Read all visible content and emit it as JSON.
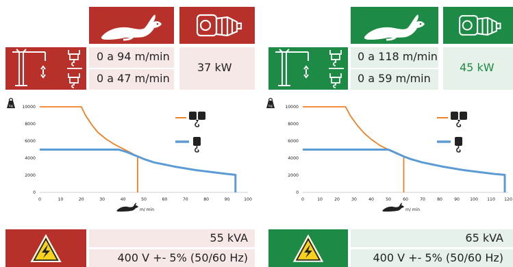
{
  "colors": {
    "red": "#b73029",
    "green": "#1d8a45",
    "pink_panel": "#f6e8e7",
    "mint_panel": "#e6f1ea",
    "orange_curve": "#f07f22",
    "blue_curve": "#5b9bd5"
  },
  "left": {
    "speed_high": "0 a 94 m/min",
    "speed_low": "0 a 47 m/min",
    "power": "37 kW",
    "apparent_power": "55 kVA",
    "voltage": "400 V +- 5% (50/60 Hz)"
  },
  "right": {
    "speed_high": "0 a 118 m/min",
    "speed_low": "0 a 59 m/min",
    "power": "45 kW",
    "apparent_power": "65 kVA",
    "voltage": "400 V +- 5% (50/60 Hz)"
  },
  "icons": [
    "rabbit-icon",
    "gear-motor-icon",
    "tower-crane-icon",
    "hook-block-icon",
    "weight-kg-icon",
    "double-hook-icon",
    "single-hook-icon",
    "high-voltage-warning-icon"
  ],
  "chart_data": [
    {
      "type": "line",
      "xlabel": "m/ min",
      "ylabel": "kg",
      "xlim": [
        0,
        100
      ],
      "ylim": [
        0,
        10000
      ],
      "x_ticks": [
        "0",
        "10",
        "20",
        "30",
        "40",
        "50",
        "60",
        "70",
        "80",
        "90",
        "100"
      ],
      "y_ticks": [
        "0",
        "2000",
        "4000",
        "6000",
        "8000",
        "10000"
      ],
      "grid": false,
      "series": [
        {
          "color": "#f07f22",
          "x": [
            0,
            20,
            22,
            25,
            28,
            32,
            36,
            40,
            44,
            47,
            47
          ],
          "y": [
            10000,
            10000,
            9000,
            7900,
            7000,
            6200,
            5600,
            5100,
            4600,
            4200,
            0
          ]
        },
        {
          "color": "#5b9bd5",
          "x": [
            0,
            38,
            42,
            47,
            50,
            55,
            60,
            65,
            70,
            75,
            80,
            85,
            90,
            94,
            94
          ],
          "y": [
            5000,
            5000,
            4700,
            4200,
            3900,
            3500,
            3250,
            3000,
            2800,
            2600,
            2450,
            2300,
            2150,
            2050,
            0
          ]
        }
      ]
    },
    {
      "type": "line",
      "xlabel": "m/ min",
      "ylabel": "kg",
      "xlim": [
        0,
        120
      ],
      "ylim": [
        0,
        10000
      ],
      "x_ticks": [
        "0",
        "10",
        "20",
        "30",
        "40",
        "50",
        "60",
        "70",
        "80",
        "90",
        "100",
        "110",
        "120"
      ],
      "y_ticks": [
        "0",
        "2000",
        "4000",
        "6000",
        "8000",
        "10000"
      ],
      "grid": false,
      "series": [
        {
          "color": "#f07f22",
          "x": [
            0,
            25,
            28,
            32,
            36,
            40,
            45,
            50,
            55,
            59,
            59
          ],
          "y": [
            10000,
            10000,
            8900,
            7800,
            6900,
            6200,
            5500,
            5000,
            4500,
            4200,
            0
          ]
        },
        {
          "color": "#5b9bd5",
          "x": [
            0,
            50,
            54,
            59,
            63,
            70,
            76,
            82,
            88,
            94,
            100,
            106,
            112,
            118,
            118
          ],
          "y": [
            5000,
            5000,
            4650,
            4200,
            3900,
            3500,
            3250,
            3000,
            2800,
            2600,
            2450,
            2300,
            2150,
            2050,
            0
          ]
        }
      ]
    }
  ]
}
